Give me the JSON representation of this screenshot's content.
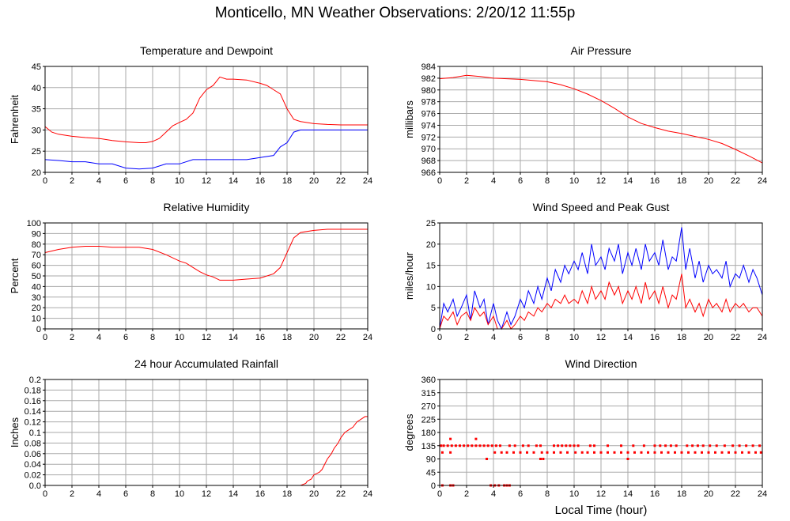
{
  "page": {
    "title": "Monticello, MN Weather Observations: 2/20/12 11:55p"
  },
  "colors": {
    "red": "#ff0000",
    "blue": "#0000ff",
    "grid": "#aaaaaa"
  },
  "chart_data": [
    {
      "type": "line",
      "title": "Temperature and Dewpoint",
      "xlabel": "",
      "ylabel": "Fahrenheit",
      "xlim": [
        0,
        24
      ],
      "ylim": [
        20,
        45
      ],
      "xticks": [
        0,
        2,
        4,
        6,
        8,
        10,
        12,
        14,
        16,
        18,
        20,
        22,
        24
      ],
      "yticks": [
        20,
        25,
        30,
        35,
        40,
        45
      ],
      "grid": true,
      "series": [
        {
          "color": "#ff0000",
          "x": [
            0,
            0.5,
            1,
            2,
            3,
            4,
            5,
            6,
            7,
            7.5,
            8,
            8.5,
            9,
            9.5,
            10,
            10.5,
            11,
            11.5,
            12,
            12.5,
            13,
            13.5,
            14,
            15,
            16,
            16.5,
            17,
            17.5,
            18,
            18.5,
            19,
            20,
            21,
            22,
            23,
            24
          ],
          "y": [
            30.8,
            29.5,
            29,
            28.5,
            28.2,
            28,
            27.5,
            27.2,
            27,
            27,
            27.3,
            28,
            29.5,
            31,
            31.8,
            32.5,
            34,
            37.5,
            39.5,
            40.5,
            42.5,
            42,
            42,
            41.8,
            41,
            40.5,
            39.5,
            38.5,
            35,
            32.5,
            32,
            31.5,
            31.3,
            31.2,
            31.2,
            31.2
          ]
        },
        {
          "color": "#0000ff",
          "x": [
            0,
            1,
            2,
            3,
            4,
            5,
            6,
            7,
            8,
            9,
            10,
            11,
            12,
            13,
            14,
            15,
            16,
            17,
            17.5,
            18,
            18.5,
            19,
            20,
            21,
            22,
            23,
            24
          ],
          "y": [
            23,
            22.8,
            22.5,
            22.5,
            22,
            22,
            21,
            20.8,
            21,
            22,
            22,
            23,
            23,
            23,
            23,
            23,
            23.5,
            24,
            26,
            27,
            29.5,
            30,
            30,
            30,
            30,
            30,
            30
          ]
        }
      ]
    },
    {
      "type": "line",
      "title": "Air Pressure",
      "xlabel": "",
      "ylabel": "millibars",
      "xlim": [
        0,
        24
      ],
      "ylim": [
        966,
        984
      ],
      "xticks": [
        0,
        2,
        4,
        6,
        8,
        10,
        12,
        14,
        16,
        18,
        20,
        22,
        24
      ],
      "yticks": [
        966,
        968,
        970,
        972,
        974,
        976,
        978,
        980,
        982,
        984
      ],
      "grid": true,
      "series": [
        {
          "color": "#ff0000",
          "x": [
            0,
            1,
            2,
            3,
            4,
            5,
            6,
            7,
            8,
            9,
            10,
            11,
            12,
            13,
            14,
            15,
            16,
            17,
            18,
            19,
            20,
            21,
            22,
            23,
            24
          ],
          "y": [
            981.9,
            982.1,
            982.5,
            982.3,
            982,
            981.9,
            981.8,
            981.6,
            981.4,
            980.9,
            980.2,
            979.3,
            978.2,
            976.9,
            975.4,
            974.3,
            973.6,
            973.0,
            972.6,
            972.1,
            971.6,
            970.9,
            969.9,
            968.8,
            967.6
          ]
        }
      ]
    },
    {
      "type": "line",
      "title": "Relative Humidity",
      "xlabel": "",
      "ylabel": "Percent",
      "xlim": [
        0,
        24
      ],
      "ylim": [
        0,
        100
      ],
      "xticks": [
        0,
        2,
        4,
        6,
        8,
        10,
        12,
        14,
        16,
        18,
        20,
        22,
        24
      ],
      "yticks": [
        0,
        10,
        20,
        30,
        40,
        50,
        60,
        70,
        80,
        90,
        100
      ],
      "grid": true,
      "series": [
        {
          "color": "#ff0000",
          "x": [
            0,
            1,
            2,
            3,
            4,
            5,
            6,
            7,
            8,
            9,
            10,
            10.5,
            11,
            11.5,
            12,
            12.5,
            13,
            14,
            15,
            16,
            17,
            17.5,
            18,
            18.5,
            19,
            20,
            21,
            22,
            23,
            24
          ],
          "y": [
            72,
            75,
            77,
            78,
            78,
            77,
            77,
            77,
            75,
            70,
            64,
            62,
            58,
            54,
            51,
            49,
            46,
            46,
            47,
            48,
            52,
            58,
            72,
            86,
            91,
            93,
            94,
            94,
            94,
            94
          ]
        }
      ]
    },
    {
      "type": "line",
      "title": "Wind Speed and Peak Gust",
      "xlabel": "",
      "ylabel": "miles/hour",
      "xlim": [
        0,
        24
      ],
      "ylim": [
        0,
        25
      ],
      "xticks": [
        0,
        2,
        4,
        6,
        8,
        10,
        12,
        14,
        16,
        18,
        20,
        22,
        24
      ],
      "yticks": [
        0,
        5,
        10,
        15,
        20,
        25
      ],
      "grid": true,
      "series": [
        {
          "color": "#0000ff",
          "x": [
            0,
            0.3,
            0.6,
            1,
            1.3,
            1.6,
            2,
            2.3,
            2.6,
            3,
            3.3,
            3.6,
            4,
            4.3,
            4.6,
            5,
            5.3,
            5.6,
            6,
            6.3,
            6.6,
            7,
            7.3,
            7.6,
            8,
            8.3,
            8.6,
            9,
            9.3,
            9.6,
            10,
            10.3,
            10.6,
            11,
            11.3,
            11.6,
            12,
            12.3,
            12.6,
            13,
            13.3,
            13.6,
            14,
            14.3,
            14.6,
            15,
            15.3,
            15.6,
            16,
            16.3,
            16.6,
            17,
            17.3,
            17.6,
            18,
            18.3,
            18.6,
            19,
            19.3,
            19.6,
            20,
            20.3,
            20.6,
            21,
            21.3,
            21.6,
            22,
            22.3,
            22.6,
            23,
            23.3,
            23.6,
            24
          ],
          "y": [
            0,
            6,
            4,
            7,
            3,
            5,
            8,
            2,
            9,
            5,
            7,
            1,
            6,
            2,
            0,
            4,
            1,
            3,
            7,
            5,
            9,
            6,
            10,
            7,
            12,
            9,
            14,
            11,
            15,
            13,
            16,
            14,
            18,
            13,
            20,
            15,
            17,
            14,
            19,
            16,
            20,
            13,
            18,
            15,
            19,
            14,
            20,
            16,
            18,
            15,
            21,
            14,
            17,
            16,
            24,
            14,
            19,
            12,
            16,
            11,
            15,
            13,
            14,
            12,
            16,
            10,
            13,
            12,
            15,
            11,
            14,
            12,
            8
          ]
        },
        {
          "color": "#ff0000",
          "x": [
            0,
            0.3,
            0.6,
            1,
            1.3,
            1.6,
            2,
            2.3,
            2.6,
            3,
            3.3,
            3.6,
            4,
            4.3,
            4.6,
            5,
            5.3,
            5.6,
            6,
            6.3,
            6.6,
            7,
            7.3,
            7.6,
            8,
            8.3,
            8.6,
            9,
            9.3,
            9.6,
            10,
            10.3,
            10.6,
            11,
            11.3,
            11.6,
            12,
            12.3,
            12.6,
            13,
            13.3,
            13.6,
            14,
            14.3,
            14.6,
            15,
            15.3,
            15.6,
            16,
            16.3,
            16.6,
            17,
            17.3,
            17.6,
            18,
            18.3,
            18.6,
            19,
            19.3,
            19.6,
            20,
            20.3,
            20.6,
            21,
            21.3,
            21.6,
            22,
            22.3,
            22.6,
            23,
            23.3,
            23.6,
            24
          ],
          "y": [
            0,
            3,
            2,
            4,
            1,
            3,
            4,
            2,
            5,
            3,
            4,
            1,
            3,
            0,
            0,
            2,
            0,
            1,
            3,
            2,
            4,
            3,
            5,
            4,
            6,
            5,
            7,
            6,
            8,
            6,
            7,
            6,
            9,
            6,
            10,
            7,
            9,
            7,
            11,
            8,
            10,
            6,
            9,
            7,
            10,
            6,
            11,
            7,
            9,
            6,
            10,
            5,
            8,
            7,
            13,
            5,
            7,
            4,
            6,
            3,
            7,
            5,
            6,
            4,
            7,
            4,
            6,
            5,
            6,
            4,
            5,
            5,
            3
          ]
        }
      ]
    },
    {
      "type": "line",
      "title": "24 hour Accumulated Rainfall",
      "xlabel": "",
      "ylabel": "Inches",
      "xlim": [
        0,
        24
      ],
      "ylim": [
        0,
        0.2
      ],
      "xticks": [
        0,
        2,
        4,
        6,
        8,
        10,
        12,
        14,
        16,
        18,
        20,
        22,
        24
      ],
      "yticks": [
        0.0,
        0.02,
        0.04,
        0.06,
        0.08,
        0.1,
        0.12,
        0.14,
        0.16,
        0.18,
        0.2
      ],
      "ytick_labels": [
        "0.0",
        "0.02",
        "0.04",
        "0.06",
        "0.08",
        "0.1",
        "0.12",
        "0.14",
        "0.16",
        "0.18",
        "0.2"
      ],
      "grid": true,
      "series": [
        {
          "color": "#ff0000",
          "x": [
            0,
            19,
            19.4,
            19.5,
            19.8,
            20,
            20.4,
            20.6,
            21,
            21.3,
            21.5,
            21.8,
            22,
            22.3,
            22.6,
            22.9,
            23.2,
            23.5,
            23.8,
            24
          ],
          "y": [
            0,
            0,
            0.004,
            0.008,
            0.012,
            0.02,
            0.025,
            0.03,
            0.05,
            0.06,
            0.07,
            0.08,
            0.09,
            0.1,
            0.105,
            0.11,
            0.12,
            0.125,
            0.13,
            0.13
          ]
        }
      ]
    },
    {
      "type": "scatter",
      "title": "Wind Direction",
      "xlabel": "Local Time (hour)",
      "ylabel": "degrees",
      "xlim": [
        0,
        24
      ],
      "ylim": [
        0,
        360
      ],
      "xticks": [
        0,
        2,
        4,
        6,
        8,
        10,
        12,
        14,
        16,
        18,
        20,
        22,
        24
      ],
      "yticks": [
        0,
        45,
        90,
        135,
        180,
        225,
        270,
        315,
        360
      ],
      "grid": true,
      "series": [
        {
          "color": "#ff0000",
          "x": [
            0.1,
            0.3,
            0.6,
            0.9,
            1.2,
            1.5,
            1.8,
            2.1,
            2.4,
            2.7,
            3.0,
            3.3,
            3.6,
            3.9,
            4.2,
            4.5,
            5.2,
            5.6,
            6.2,
            6.6,
            7.2,
            7.5,
            8.5,
            8.8,
            9.1,
            9.4,
            9.7,
            10.0,
            10.3,
            11.2,
            11.5,
            12.5,
            13.5,
            14.4,
            15.2,
            16.0,
            16.4,
            16.8,
            17.2,
            17.6,
            18.4,
            18.8,
            19.2,
            19.6,
            20.1,
            20.6,
            21.2,
            21.8,
            22.3,
            22.8,
            23.3,
            23.8
          ],
          "y": [
            135,
            135,
            135,
            135,
            135,
            135,
            135,
            135,
            135,
            135,
            135,
            135,
            135,
            135,
            135,
            135,
            135,
            135,
            135,
            135,
            135,
            135,
            135,
            135,
            135,
            135,
            135,
            135,
            135,
            135,
            135,
            135,
            135,
            135,
            135,
            135,
            135,
            135,
            135,
            135,
            135,
            135,
            135,
            135,
            135,
            135,
            135,
            135,
            135,
            135,
            135,
            135
          ]
        },
        {
          "color": "#ff0000",
          "x": [
            0.2,
            0.8,
            4.1,
            4.6,
            5.0,
            5.5,
            6.0,
            6.5,
            7.0,
            7.6,
            8.0,
            8.5,
            9.0,
            9.5,
            10.1,
            10.6,
            11.0,
            11.5,
            12.0,
            12.5,
            13.0,
            13.5,
            14.0,
            14.5,
            15.0,
            15.5,
            16.0,
            16.5,
            17.0,
            17.5,
            18.0,
            18.5,
            19.0,
            19.5,
            20.0,
            20.5,
            21.0,
            21.5,
            22.0,
            22.5,
            23.0,
            23.5,
            23.9
          ],
          "y": [
            112,
            112,
            112,
            112,
            112,
            112,
            112,
            112,
            112,
            112,
            112,
            112,
            112,
            112,
            112,
            112,
            112,
            112,
            112,
            112,
            112,
            112,
            112,
            112,
            112,
            112,
            112,
            112,
            112,
            112,
            112,
            112,
            112,
            112,
            112,
            112,
            112,
            112,
            112,
            112,
            112,
            112,
            112
          ]
        },
        {
          "color": "#ff0000",
          "x": [
            0.8,
            2.7,
            3.5,
            7.5,
            7.7,
            14.0,
            0.2,
            0.8,
            1.0,
            3.8,
            4.1,
            4.4,
            4.8,
            5.0,
            5.2
          ],
          "y": [
            158,
            158,
            90,
            90,
            90,
            90,
            0,
            0,
            0,
            0,
            0,
            0,
            0,
            0,
            0
          ]
        }
      ]
    }
  ]
}
